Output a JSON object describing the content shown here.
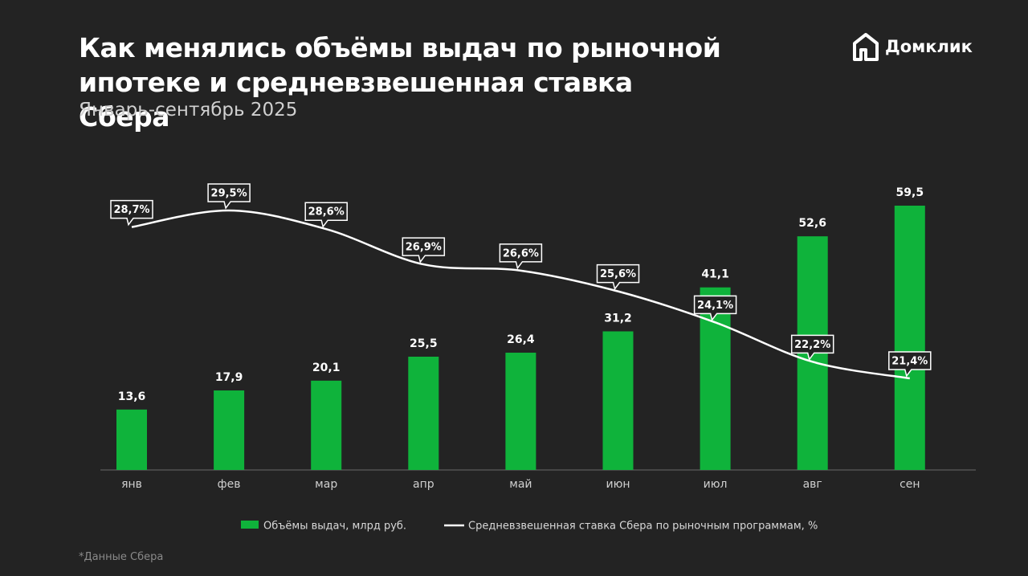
{
  "logo": "Домклик",
  "chart_data": {
    "type": "bar",
    "title": "Как менялись объёмы выдач по рыночной ипотеке и средневзвешенная ставка Сбера",
    "subtitle": "Январь-сентябрь 2025",
    "note": "*Данные Сбера",
    "categories": [
      "янв",
      "фев",
      "мар",
      "апр",
      "май",
      "июн",
      "июл",
      "авг",
      "сен"
    ],
    "series": [
      {
        "name": "Объёмы выдач, млрд руб.",
        "type": "bar",
        "color": "#0fb33b",
        "values": [
          13.6,
          17.9,
          20.1,
          25.5,
          26.4,
          31.2,
          41.1,
          52.6,
          59.5
        ],
        "value_labels": [
          "13,6",
          "17,9",
          "20,1",
          "25,5",
          "26,4",
          "31,2",
          "41,1",
          "52,6",
          "59,5"
        ]
      },
      {
        "name": "Средневзвешенная ставка Сбера по рыночным программам, %",
        "type": "line",
        "color": "#ffffff",
        "axis": "y2",
        "values": [
          28.7,
          29.5,
          28.6,
          26.9,
          26.6,
          25.6,
          24.1,
          22.2,
          21.4
        ],
        "value_labels": [
          "28,7%",
          "29,5%",
          "28,6%",
          "26,9%",
          "26,6%",
          "25,6%",
          "24,1%",
          "22,2%",
          "21,4%"
        ]
      }
    ]
  }
}
